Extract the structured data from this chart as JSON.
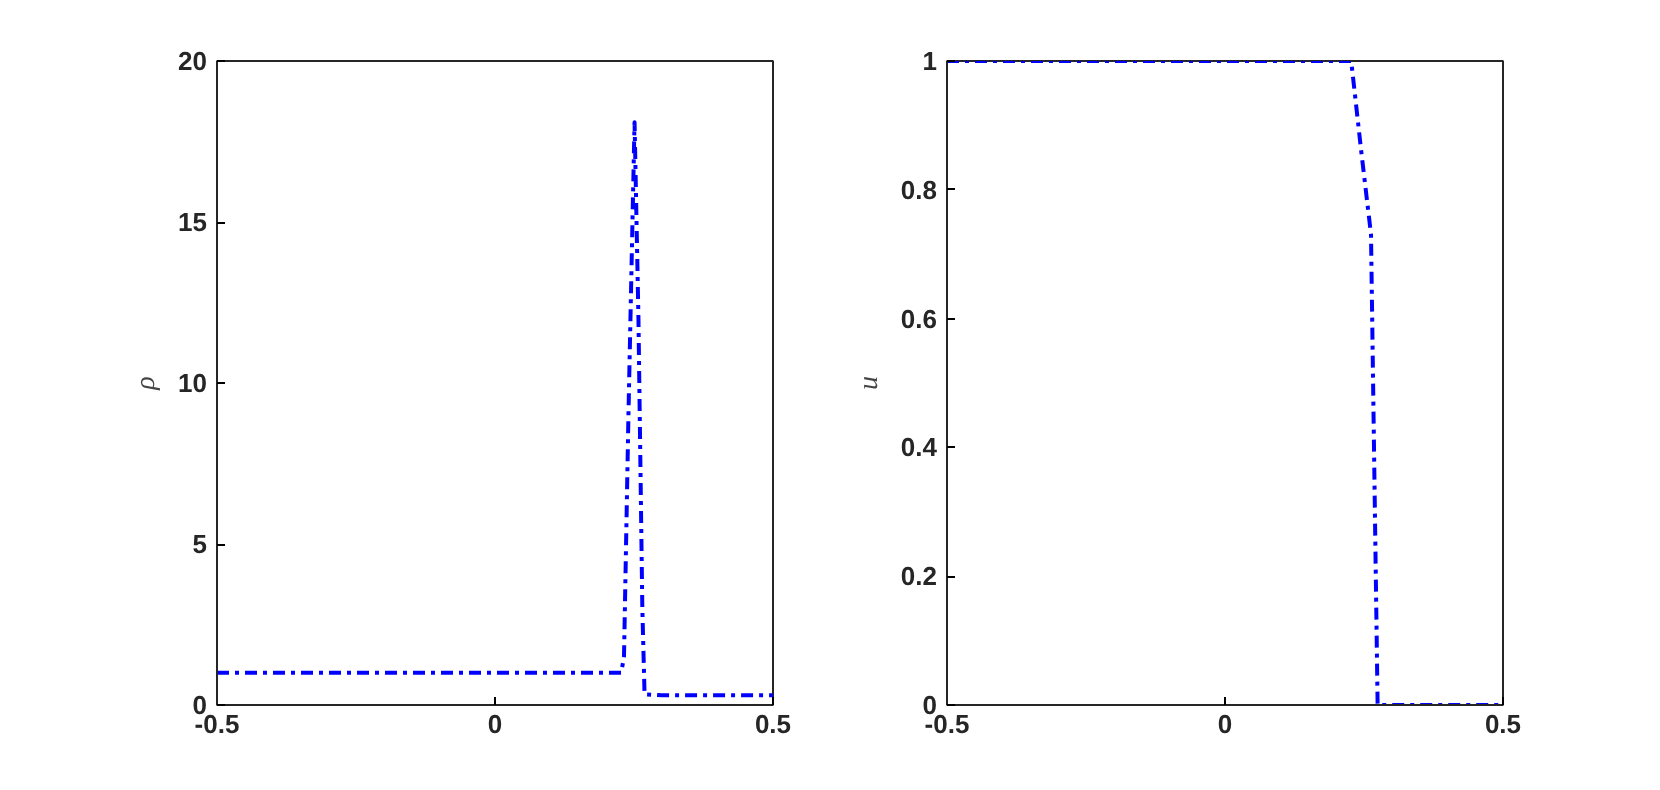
{
  "chart_data": [
    {
      "type": "line",
      "ylabel": "ρ",
      "xlim": [
        -0.5,
        0.5
      ],
      "ylim": [
        0,
        20
      ],
      "xticks": [
        -0.5,
        0,
        0.5
      ],
      "yticks": [
        0,
        5,
        10,
        15,
        20
      ],
      "line_style": "dashed",
      "series": [
        {
          "color": "#0000ff",
          "x": [
            -0.5,
            0.227,
            0.232,
            0.24,
            0.251,
            0.258,
            0.265,
            0.269,
            0.3,
            0.5
          ],
          "values": [
            1,
            1,
            1.5,
            9,
            18.1,
            12,
            3,
            0.33,
            0.3,
            0.3
          ]
        }
      ]
    },
    {
      "type": "line",
      "ylabel": "u",
      "xlim": [
        -0.5,
        0.5
      ],
      "ylim": [
        0,
        1
      ],
      "xticks": [
        -0.5,
        0,
        0.5
      ],
      "yticks": [
        0,
        0.2,
        0.4,
        0.6,
        0.8,
        1
      ],
      "line_style": "dashed",
      "series": [
        {
          "color": "#0000ff",
          "x": [
            -0.5,
            0.227,
            0.245,
            0.2626,
            0.2745,
            0.5
          ],
          "values": [
            1,
            1,
            0.86,
            0.731,
            0,
            0
          ]
        }
      ]
    }
  ]
}
